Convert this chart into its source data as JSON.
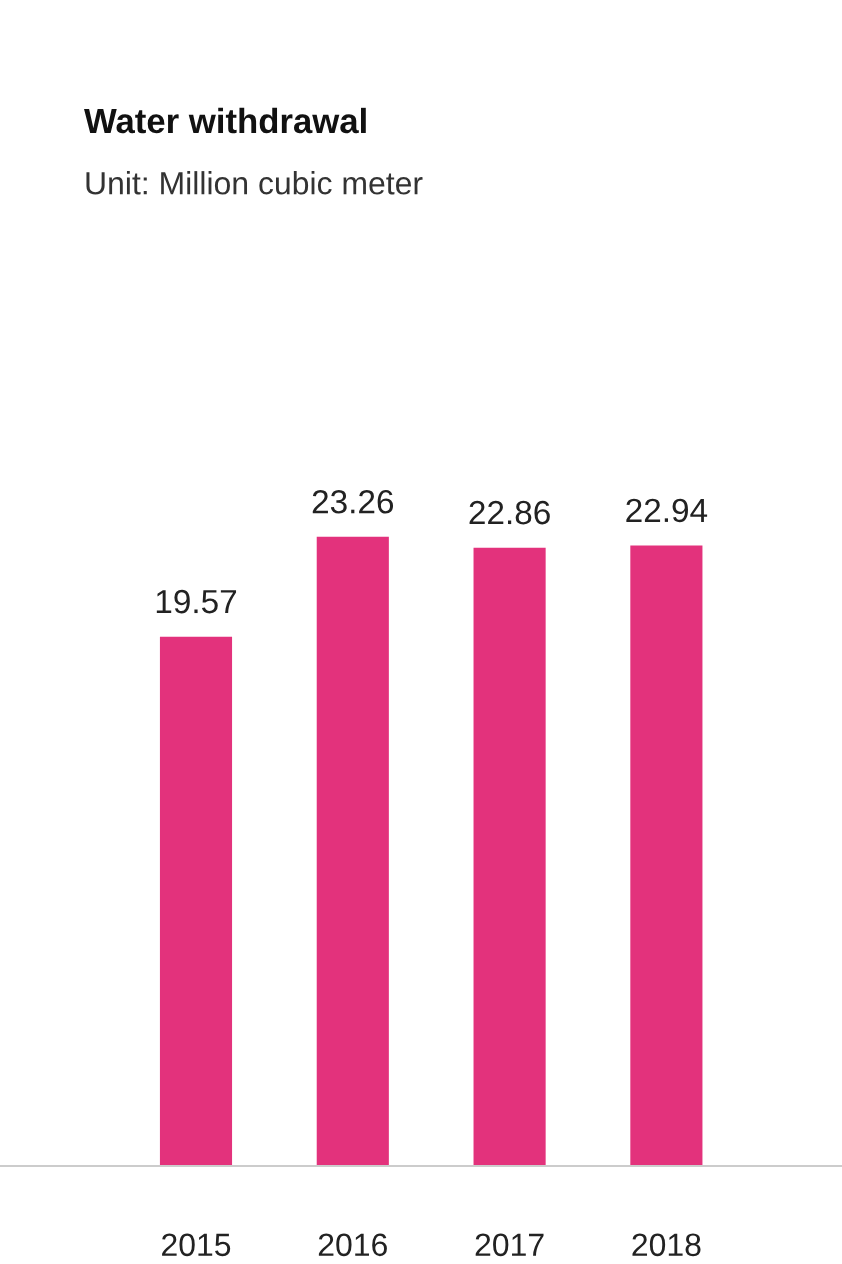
{
  "chart_data": {
    "type": "bar",
    "title": "Water withdrawal",
    "subtitle": "Unit: Million cubic meter",
    "categories": [
      "2015",
      "2016",
      "2017",
      "2018"
    ],
    "values": [
      19.57,
      23.26,
      22.86,
      22.94
    ],
    "color": "#e3327c",
    "data_labels": true,
    "grid": false,
    "legend": false
  }
}
